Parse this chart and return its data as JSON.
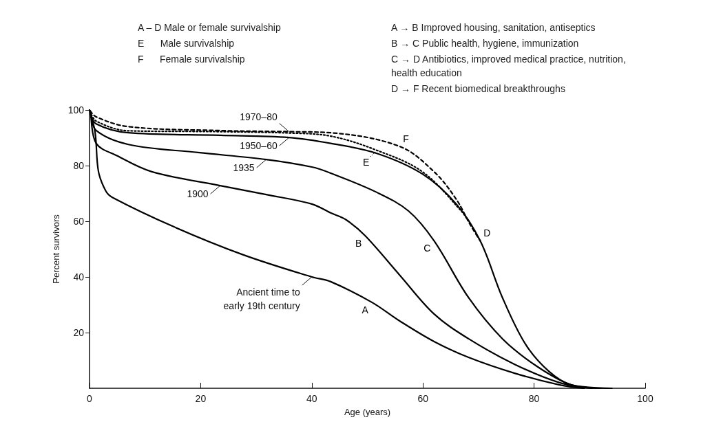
{
  "chart_data": {
    "type": "line",
    "xlabel": "Age (years)",
    "ylabel": "Percent survivors",
    "xlim": [
      0,
      100
    ],
    "xticks": [
      0,
      20,
      40,
      60,
      80,
      100
    ],
    "ylim": [
      0,
      100
    ],
    "yticks": [
      20,
      40,
      60,
      80,
      100
    ],
    "grid": false,
    "marker": "none",
    "series": [
      {
        "name": "A",
        "color": "#000000",
        "line_style": "solid",
        "x": [
          0,
          1,
          1.6,
          2.9,
          4.1,
          15.2,
          27.6,
          40,
          43.4,
          50.8,
          55.8,
          62,
          68.2,
          76.5,
          84.6,
          89
        ],
        "values": [
          100,
          92,
          78,
          71,
          68.6,
          58,
          48,
          40,
          38.3,
          30.9,
          24.2,
          16.8,
          11.1,
          5.4,
          1.2,
          0
        ]
      },
      {
        "name": "B",
        "color": "#000000",
        "line_style": "solid",
        "x": [
          0.3,
          1.2,
          5,
          11.2,
          23.5,
          31.8,
          40,
          43.4,
          46.2,
          49.6,
          55.8,
          62,
          68.2,
          76.5,
          84.6,
          90.5
        ],
        "values": [
          98,
          88,
          83.5,
          77.8,
          72.8,
          69.6,
          66.2,
          63,
          60.5,
          54.8,
          40.7,
          26.7,
          17.8,
          8.6,
          2,
          0
        ]
      },
      {
        "name": "C",
        "color": "#000000",
        "line_style": "solid",
        "x": [
          0.2,
          1.2,
          7,
          19.5,
          31.8,
          40,
          43.4,
          51.7,
          57.4,
          62,
          68.2,
          74.3,
          80.5,
          86.7,
          92
        ],
        "values": [
          98.5,
          92.6,
          87.6,
          84.7,
          82.2,
          79.5,
          77.3,
          70.4,
          63.7,
          53,
          32.6,
          17.8,
          7.9,
          1.2,
          0
        ]
      },
      {
        "name": "D",
        "color": "#000000",
        "line_style": "solid",
        "x": [
          0.1,
          1.2,
          7,
          23.5,
          35.9,
          43.4,
          51.7,
          59.9,
          66,
          70.3,
          74.3,
          78.4,
          82.6,
          86.7,
          94
        ],
        "values": [
          99,
          95,
          91.8,
          90.9,
          90.1,
          88,
          84.4,
          77,
          66.2,
          53,
          32.6,
          16,
          6.2,
          1.2,
          0
        ]
      },
      {
        "name": "E",
        "color": "#000000",
        "line_style": "dotted",
        "x": [
          0.1,
          1.2,
          7,
          23.5,
          35.9,
          43.4,
          51.7,
          59.9,
          66.9,
          68.2
        ],
        "values": [
          99.5,
          96,
          92.5,
          92.2,
          91.7,
          90.6,
          85.5,
          77.8,
          63.7,
          60
        ]
      },
      {
        "name": "F",
        "color": "#000000",
        "line_style": "dashed",
        "x": [
          0.1,
          1.2,
          7,
          23.5,
          35.9,
          43.4,
          55.8,
          62,
          66,
          68.5,
          70.3
        ],
        "values": [
          99.8,
          97.5,
          94,
          92.6,
          92.2,
          91.8,
          86.9,
          77.8,
          67.9,
          58.8,
          53
        ]
      }
    ],
    "annotations": [
      "A – D Male or female survivalship",
      "E      Male survivalship",
      "F      Female survivalship",
      "A → B Improved housing, sanitation, antiseptics",
      "B → C Public health, hygiene, immunization",
      "C → D Antibiotics, improved medical practice, nutrition, health education",
      "D → F Recent biomedical breakthroughs",
      {
        "text": "1970–80",
        "x": 35.9,
        "y": 92.2
      },
      {
        "text": "1950–60",
        "x": 35.9,
        "y": 90.1
      },
      {
        "text": "1935",
        "x": 31.8,
        "y": 82.2
      },
      {
        "text": "1900",
        "x": 23.5,
        "y": 72.8
      },
      {
        "text": "Ancient time to\nearly 19th century",
        "x": 40,
        "y": 40
      }
    ]
  }
}
